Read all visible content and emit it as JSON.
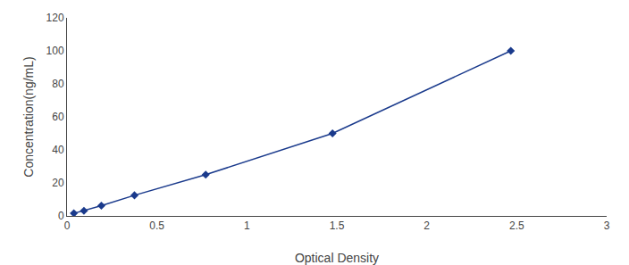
{
  "chart_data": {
    "type": "line",
    "x": [
      0.038,
      0.094,
      0.191,
      0.375,
      0.771,
      1.476,
      2.467
    ],
    "values": [
      1.56,
      3.13,
      6.25,
      12.5,
      25.0,
      50.0,
      100.0
    ],
    "xlabel": "Optical Density",
    "ylabel": "Concentration(ng/mL)",
    "xlim": [
      0,
      3
    ],
    "ylim": [
      0,
      120
    ],
    "xticks": [
      0,
      0.5,
      1,
      1.5,
      2,
      2.5,
      3
    ],
    "yticks": [
      0,
      20,
      40,
      60,
      80,
      100,
      120
    ],
    "color": "#1a3a8c",
    "marker": "diamond",
    "line_style": "solid",
    "grid": false
  }
}
